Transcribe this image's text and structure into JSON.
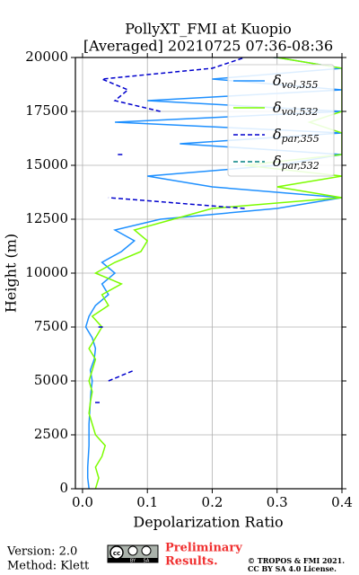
{
  "chart_data": {
    "type": "line",
    "title": [
      "PollyXT_FMI at Kuopio",
      "[Averaged] 20210725 07:36-08:36"
    ],
    "xlabel": "Depolarization Ratio",
    "ylabel": "Height (m)",
    "xlim": [
      -0.011,
      0.4
    ],
    "ylim": [
      0,
      20000
    ],
    "xticks": [
      {
        "value": 0,
        "label": "0.0"
      },
      0.1,
      0.2,
      0.3,
      0.4
    ],
    "yticks": [
      0,
      2500,
      5000,
      7500,
      10000,
      12500,
      15000,
      17500,
      20000
    ],
    "grid": true,
    "legend": "upper right",
    "y": [
      0,
      500,
      1000,
      1500,
      2000,
      2500,
      3000,
      3500,
      4000,
      4500,
      5000,
      5500,
      6000,
      6500,
      7000,
      7500,
      8000,
      8500,
      9000,
      9500,
      10000,
      10500,
      11000,
      11500,
      12000,
      12500,
      13000,
      13500,
      14000,
      14500,
      15000,
      15500,
      16000,
      16500,
      17000,
      17500,
      18000,
      18500,
      19000,
      19500,
      20000
    ],
    "series": [
      {
        "name": "δvol,355",
        "color": "#1e90ff",
        "linestyle": "solid",
        "values": [
          0.01,
          0.008,
          0.008,
          0.009,
          0.01,
          0.01,
          0.01,
          0.011,
          0.012,
          0.013,
          0.015,
          0.012,
          0.018,
          0.02,
          0.015,
          0.005,
          0.01,
          0.02,
          0.04,
          0.03,
          0.05,
          0.03,
          0.06,
          0.08,
          0.05,
          0.12,
          0.3,
          0.4,
          0.2,
          0.1,
          0.3,
          0.4,
          0.15,
          0.4,
          0.05,
          0.4,
          0.1,
          0.4,
          0.2,
          0.4,
          0.3
        ]
      },
      {
        "name": "δvol,532",
        "color": "#7cfc00",
        "linestyle": "solid",
        "values": [
          0.02,
          0.025,
          0.02,
          0.03,
          0.035,
          0.02,
          0.015,
          0.01,
          0.012,
          0.015,
          0.01,
          0.015,
          0.02,
          0.01,
          0.02,
          0.03,
          0.015,
          0.04,
          0.03,
          0.06,
          0.02,
          0.05,
          0.09,
          0.1,
          0.08,
          0.14,
          0.2,
          0.4,
          0.3,
          0.4,
          0.25,
          0.4,
          0.4,
          0.4,
          0.35,
          0.4,
          0.4,
          0.4,
          0.4,
          0.4,
          0.3
        ]
      },
      {
        "name": "δpar,355",
        "color": "#0000cd",
        "linestyle": "dashed",
        "values": [
          null,
          null,
          null,
          null,
          null,
          null,
          null,
          null,
          0.025,
          null,
          0.04,
          0.08,
          null,
          null,
          null,
          0.03,
          null,
          null,
          null,
          null,
          null,
          null,
          null,
          null,
          null,
          null,
          0.25,
          0.04,
          null,
          null,
          null,
          0.06,
          null,
          null,
          null,
          0.12,
          0.05,
          0.07,
          0.03,
          0.2,
          0.25
        ]
      },
      {
        "name": "δpar,532",
        "color": "#008080",
        "linestyle": "dashed",
        "values": [
          null,
          null,
          null,
          null,
          null,
          null,
          null,
          null,
          null,
          null,
          null,
          null,
          null,
          null,
          null,
          null,
          null,
          null,
          null,
          null,
          null,
          null,
          null,
          null,
          null,
          null,
          null,
          null,
          null,
          null,
          null,
          null,
          null,
          null,
          null,
          null,
          null,
          null,
          null,
          null,
          0.3
        ]
      }
    ]
  },
  "footer": {
    "version": "Version: 2.0",
    "method": "Method: Klett",
    "logo": [
      "cc",
      "BY",
      "SA"
    ],
    "preliminary": [
      "Preliminary",
      "Results."
    ],
    "copyright": [
      "© TROPOS & FMI 2021.",
      "CC BY SA 4.0 License."
    ]
  }
}
